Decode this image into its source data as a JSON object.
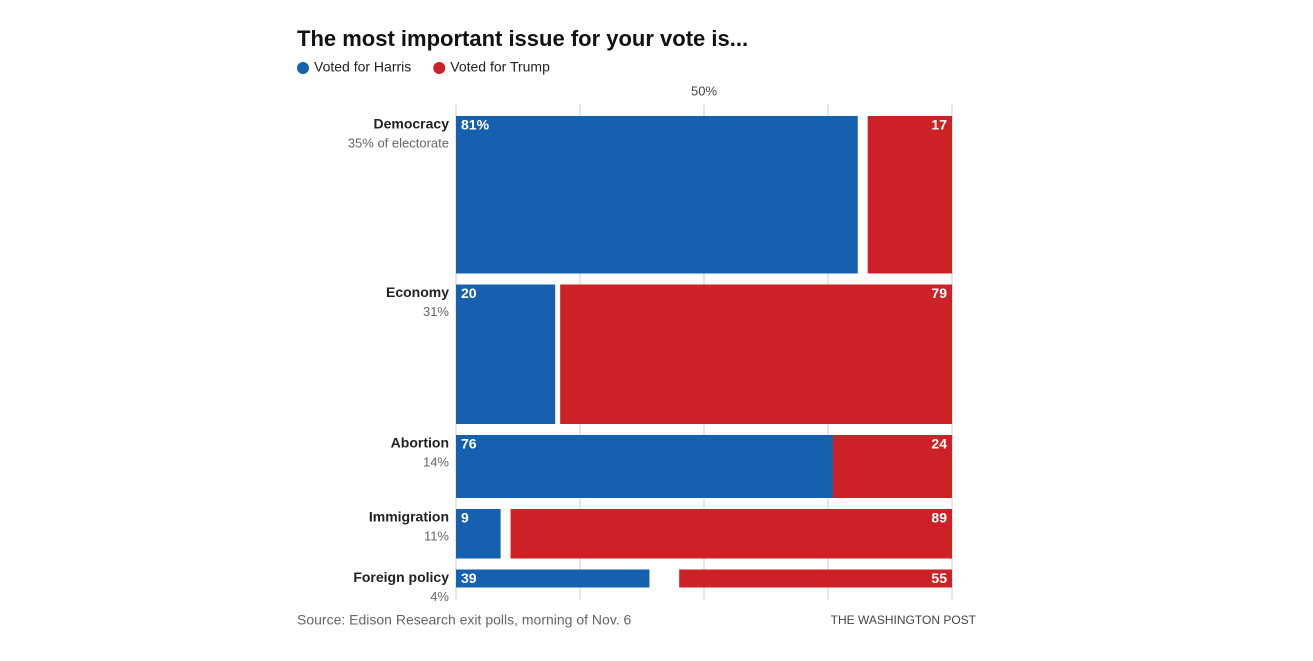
{
  "chart_data": {
    "type": "mekko",
    "title": "The most important issue for your vote is...",
    "categories": [
      "Democracy",
      "Economy",
      "Abortion",
      "Immigration",
      "Foreign policy"
    ],
    "shares": [
      35,
      31,
      14,
      11,
      4
    ],
    "share_labels": [
      "35% of electorate",
      "31%",
      "14%",
      "11%",
      "4%"
    ],
    "series": [
      {
        "name": "Voted for Harris",
        "color": "#1561b0",
        "values": [
          81,
          20,
          76,
          9,
          39
        ],
        "value_labels": [
          "81%",
          "20",
          "76",
          "9",
          "39"
        ]
      },
      {
        "name": "Voted for Trump",
        "color": "#cc2127",
        "values": [
          17,
          79,
          24,
          89,
          55
        ],
        "value_labels": [
          "17",
          "79",
          "24",
          "89",
          "55"
        ]
      }
    ],
    "xlim": [
      0,
      100
    ],
    "xticks": [
      {
        "value": 50,
        "label": "50%"
      }
    ],
    "gridlines": [
      0,
      25,
      50,
      75,
      100
    ],
    "source": "Source: Edison Research exit polls, morning of Nov. 6",
    "credit": "THE WASHINGTON POST"
  }
}
